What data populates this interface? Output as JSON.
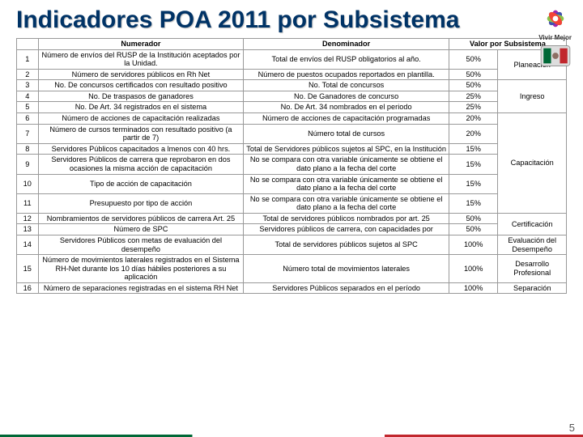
{
  "title": "Indicadores POA 2011 por Subsistema",
  "logo_text": "Vivir Mejor",
  "page_number": "5",
  "headers": {
    "num": "",
    "numerador": "Numerador",
    "denominador": "Denominador",
    "valor": "Valor por Subsistema"
  },
  "rows": [
    {
      "n": "1",
      "numer": "Número de envíos del RUSP de la Institución aceptados por la Unidad.",
      "denom": "Total de envíos del RUSP obligatorios al año.",
      "val": "50%"
    },
    {
      "n": "2",
      "numer": "Número de servidores públicos en Rh Net",
      "denom": "Número de puestos ocupados reportados en plantilla.",
      "val": "50%"
    },
    {
      "n": "3",
      "numer": "No. De concursos certificados con resultado positivo",
      "denom": "No. Total de concursos",
      "val": "50%"
    },
    {
      "n": "4",
      "numer": "No. De traspasos de ganadores",
      "denom": "No. De Ganadores de concurso",
      "val": "25%"
    },
    {
      "n": "5",
      "numer": "No. De Art. 34 registrados en el sistema",
      "denom": "No. De Art. 34 nombrados en el periodo",
      "val": "25%"
    },
    {
      "n": "6",
      "numer": "Número de acciones de capacitación realizadas",
      "denom": "Número de acciones de capacitación programadas",
      "val": "20%"
    },
    {
      "n": "7",
      "numer": "Número de cursos terminados con resultado positivo (a partir de 7)",
      "denom": "Número total de cursos",
      "val": "20%"
    },
    {
      "n": "8",
      "numer": "Servidores Públicos capacitados a lmenos con 40 hrs.",
      "denom": "Total de Servidores públicos sujetos al SPC, en la Institución",
      "val": "15%"
    },
    {
      "n": "9",
      "numer": "Servidores Públicos de carrera que reprobaron en dos ocasiones la misma acción de capacitación",
      "denom": "No se compara con otra variable únicamente se obtiene el dato plano a la fecha del corte",
      "val": "15%"
    },
    {
      "n": "10",
      "numer": "Tipo de acción de capacitación",
      "denom": "No se compara con otra variable únicamente se obtiene el dato plano a la fecha del corte",
      "val": "15%"
    },
    {
      "n": "11",
      "numer": "Presupuesto por tipo de acción",
      "denom": "No se compara con otra variable únicamente se obtiene el dato plano a la fecha del corte",
      "val": "15%"
    },
    {
      "n": "12",
      "numer": "Nombramientos de servidores públicos de carrera Art. 25",
      "denom": "Total de servidores públicos nombrados por art. 25",
      "val": "50%"
    },
    {
      "n": "13",
      "numer": "Número de SPC",
      "denom": "Servidores públicos de carrera, con capacidades por",
      "val": "50%"
    },
    {
      "n": "14",
      "numer": "Servidores Públicos con metas de evaluación del desempeño",
      "denom": "Total de servidores públicos sujetos al SPC",
      "val": "100%"
    },
    {
      "n": "15",
      "numer": "Número de movimientos laterales registrados en el Sistema RH-Net durante los 10 días hábiles posteriores a su aplicación",
      "denom": "Número total de movimientos laterales",
      "val": "100%"
    },
    {
      "n": "16",
      "numer": "Número de separaciones registradas en el sistema RH Net",
      "denom": "Servidores Públicos separados en el período",
      "val": "100%"
    }
  ],
  "subsystems": [
    {
      "label": "Planeación",
      "span": 2
    },
    {
      "label": "Ingreso",
      "span": 3
    },
    {
      "label": "Capacitación",
      "span": 6
    },
    {
      "label": "Certificación",
      "span": 2
    },
    {
      "label": "Evaluación del Desempeño",
      "span": 1
    },
    {
      "label": "Desarrollo Profesional",
      "span": 1
    },
    {
      "label": "Separación",
      "span": 1
    }
  ],
  "colors": {
    "title": "#003366",
    "border": "#999999",
    "text": "#000000"
  }
}
